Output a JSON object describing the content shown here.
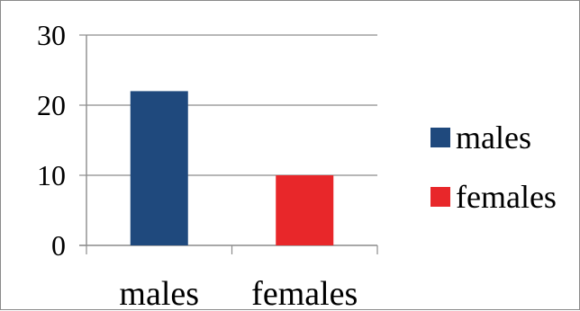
{
  "chart_data": {
    "type": "bar",
    "categories": [
      "males",
      "females"
    ],
    "values": [
      22,
      10
    ],
    "colors": [
      "#1f497d",
      "#e8272a"
    ],
    "legend": [
      {
        "label": "males",
        "color": "#1f497d"
      },
      {
        "label": "females",
        "color": "#e8272a"
      }
    ],
    "legend_position": "right",
    "yticks": [
      0,
      10,
      20,
      30
    ],
    "ylim": [
      0,
      30
    ],
    "grid": true,
    "title": "",
    "xlabel": "",
    "ylabel": ""
  }
}
